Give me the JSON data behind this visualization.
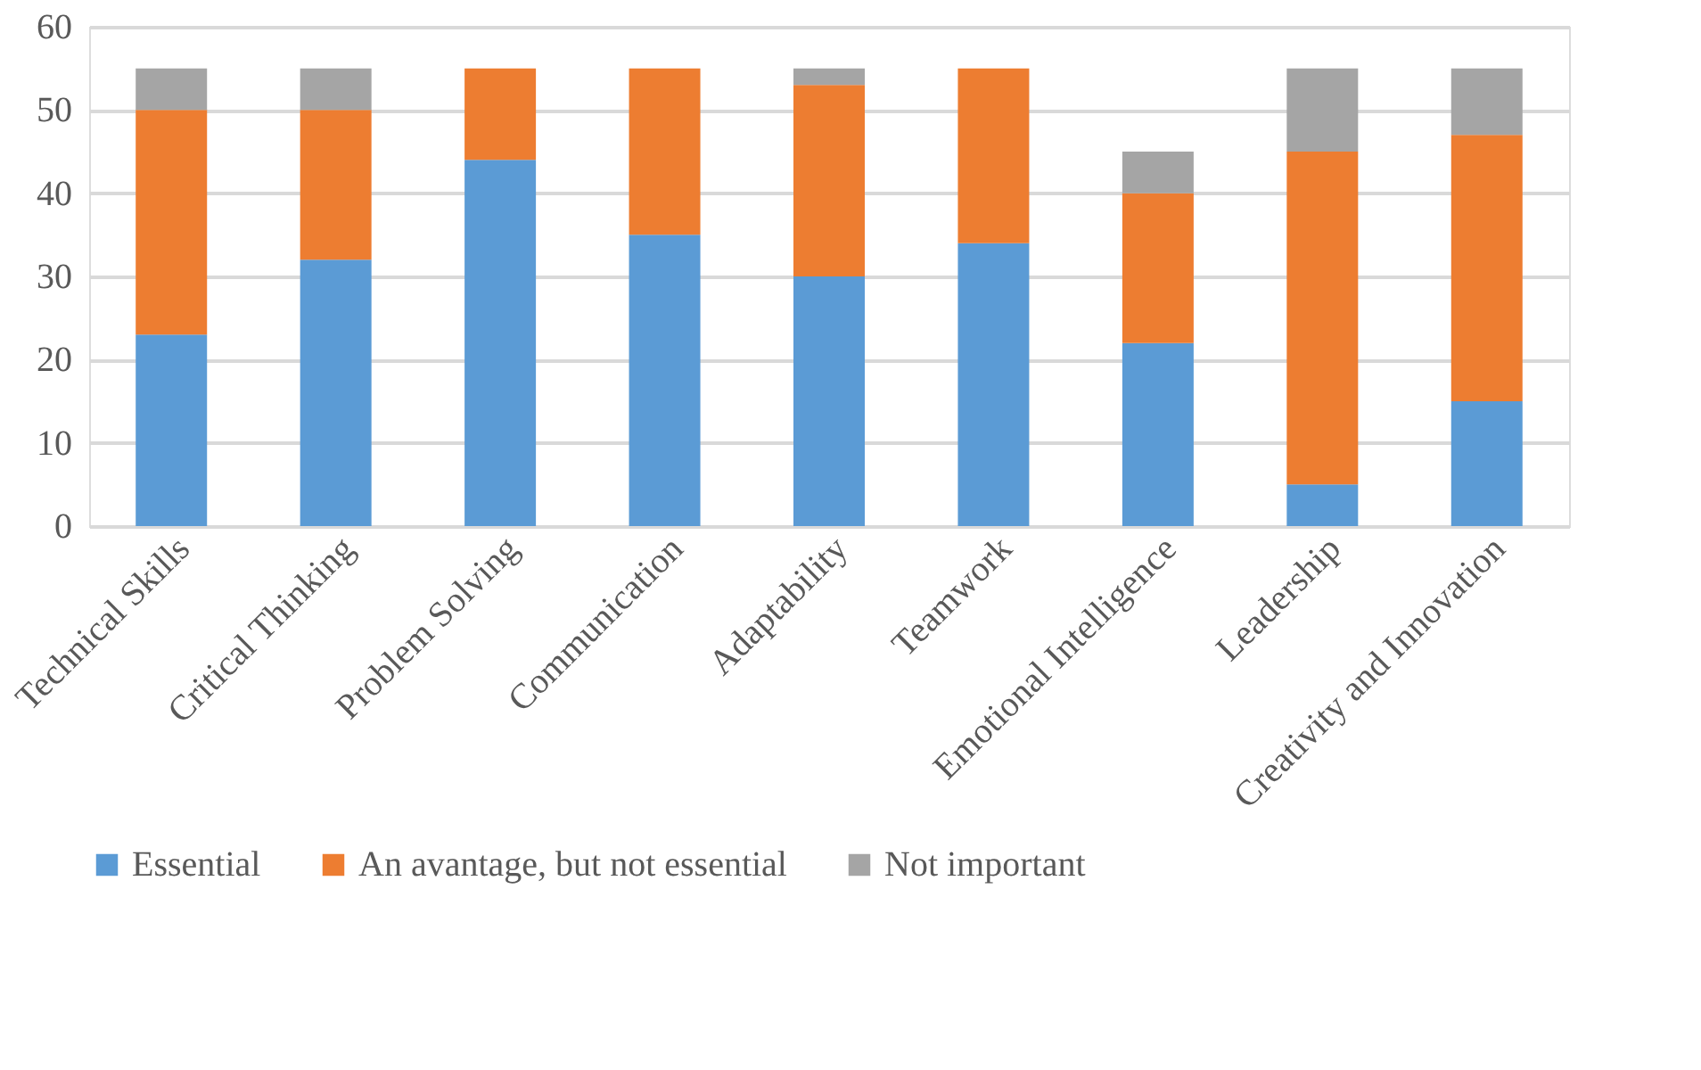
{
  "chart_data": {
    "type": "bar",
    "stacked": true,
    "categories": [
      "Technical Skills",
      "Critical Thinking",
      "Problem Solving",
      "Communication",
      "Adaptability",
      "Teamwork",
      "Emotional Intelligence",
      "Leadership",
      "Creativity and Innovation"
    ],
    "series": [
      {
        "name": "Essential",
        "color": "#5b9bd5",
        "values": [
          23,
          32,
          44,
          35,
          30,
          34,
          22,
          5,
          15
        ]
      },
      {
        "name": "An avantage, but not essential",
        "color": "#ed7d31",
        "values": [
          27,
          18,
          11,
          20,
          23,
          21,
          18,
          40,
          32
        ]
      },
      {
        "name": "Not important",
        "color": "#a5a5a5",
        "values": [
          5,
          5,
          0,
          0,
          2,
          0,
          5,
          10,
          8
        ]
      }
    ],
    "ylim": [
      0,
      60
    ],
    "yticks": [
      0,
      10,
      20,
      30,
      40,
      50,
      60
    ],
    "grid": "y",
    "legend": "bottom"
  }
}
